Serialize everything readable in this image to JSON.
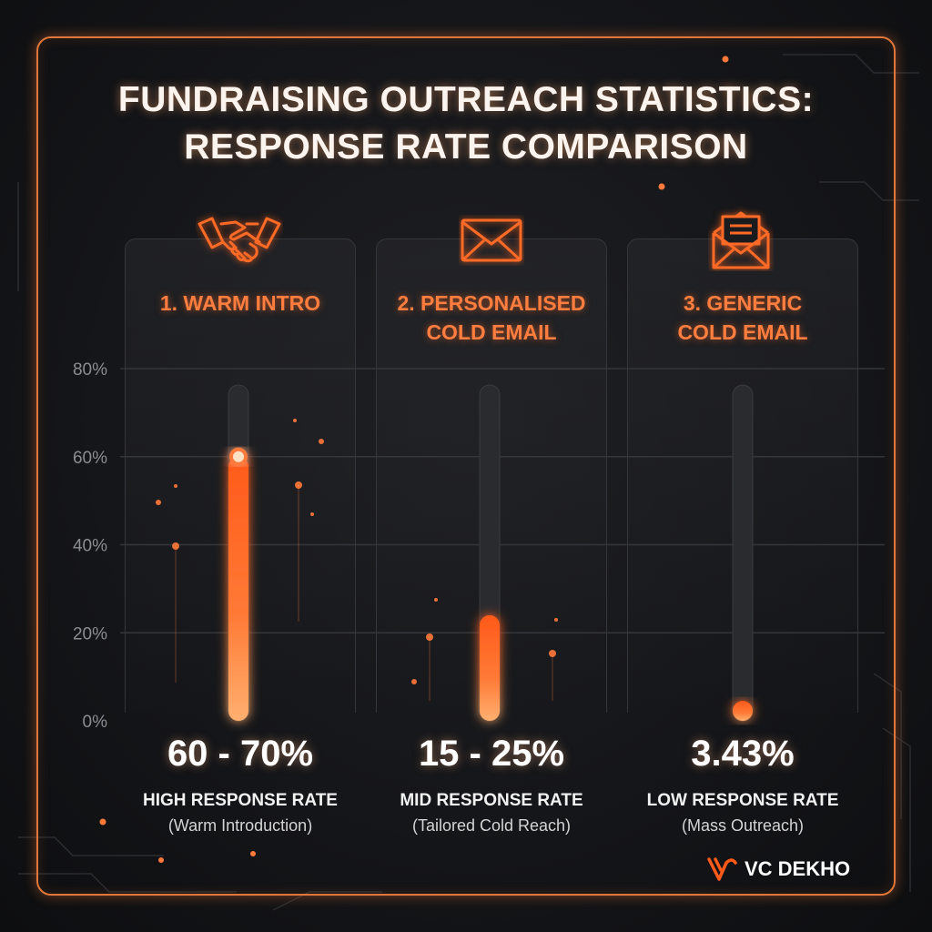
{
  "title": {
    "line1": "FUNDRAISING OUTREACH STATISTICS:",
    "line2": "RESPONSE RATE COMPARISON"
  },
  "chart_data": {
    "type": "bar",
    "categories": [
      "1. WARM INTRO",
      "2. PERSONALISED COLD EMAIL",
      "3. GENERIC COLD EMAIL"
    ],
    "category_lines": [
      [
        "1. WARM INTRO"
      ],
      [
        "2. PERSONALISED",
        "COLD EMAIL"
      ],
      [
        "3. GENERIC",
        "COLD EMAIL"
      ]
    ],
    "values": [
      60,
      24,
      3.43
    ],
    "ranges": [
      [
        60,
        70
      ],
      [
        15,
        25
      ],
      [
        3.43,
        3.43
      ]
    ],
    "value_labels": [
      "60 - 70%",
      "15 - 25%",
      "3.43%"
    ],
    "rate_labels": [
      "HIGH RESPONSE RATE",
      "MID RESPONSE RATE",
      "LOW RESPONSE RATE"
    ],
    "rate_sublabels": [
      "(Warm Introduction)",
      "(Tailored Cold Reach)",
      "(Mass Outreach)"
    ],
    "icons": [
      "handshake-icon",
      "envelope-icon",
      "open-envelope-letter-icon"
    ],
    "ylim": [
      0,
      80
    ],
    "yticks": [
      0,
      20,
      40,
      60,
      80
    ],
    "ytick_labels": [
      "0%",
      "20%",
      "40%",
      "60%",
      "80%"
    ],
    "grid": true,
    "colors": {
      "accent": "#ff6a26",
      "frame": "#e0773a",
      "track": "#2a2b2f",
      "background": "#141518"
    }
  },
  "brand": {
    "name": "VC DEKHO",
    "logo_icon": "vc-dekho-logo-icon"
  }
}
